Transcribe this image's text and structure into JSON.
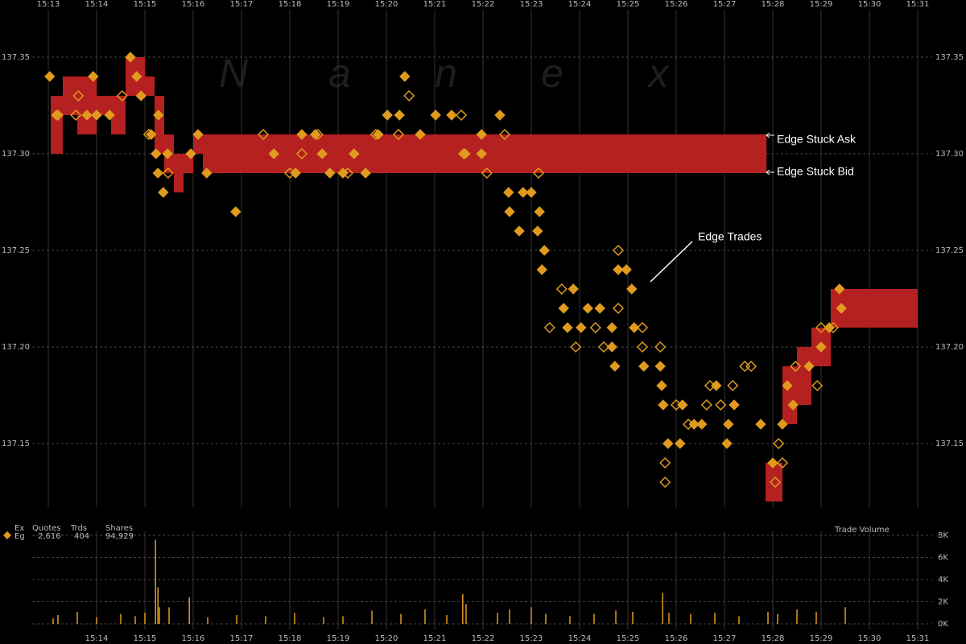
{
  "chart_data": [
    {
      "type": "quote-trade",
      "watermark": [
        "N",
        "a",
        "n",
        "e",
        "x"
      ],
      "xlim": [
        13,
        31
      ],
      "xticks": [
        {
          "value": 13,
          "label": "15:13"
        },
        {
          "value": 14,
          "label": "15:14"
        },
        {
          "value": 15,
          "label": "15:15"
        },
        {
          "value": 16,
          "label": "15:16"
        },
        {
          "value": 17,
          "label": "15:17"
        },
        {
          "value": 18,
          "label": "15:18"
        },
        {
          "value": 19,
          "label": "15:19"
        },
        {
          "value": 20,
          "label": "15:20"
        },
        {
          "value": 21,
          "label": "15:21"
        },
        {
          "value": 22,
          "label": "15:22"
        },
        {
          "value": 23,
          "label": "15:23"
        },
        {
          "value": 24,
          "label": "15:24"
        },
        {
          "value": 25,
          "label": "15:25"
        },
        {
          "value": 26,
          "label": "15:26"
        },
        {
          "value": 27,
          "label": "15:27"
        },
        {
          "value": 28,
          "label": "15:28"
        },
        {
          "value": 29,
          "label": "15:29"
        },
        {
          "value": 30,
          "label": "15:30"
        },
        {
          "value": 31,
          "label": "15:31"
        }
      ],
      "ylim": [
        137.115,
        137.38
      ],
      "yticks": [
        137.15,
        {
          "value": 137.2,
          "label": "137.20"
        },
        137.25,
        {
          "value": 137.3,
          "label": "137.30"
        },
        137.35
      ],
      "grid": true,
      "quotes": {
        "color": "#b52020",
        "start": [
          13.05,
          13.3,
          13.6,
          14.0,
          14.3,
          14.6,
          15.0,
          15.2,
          15.4,
          15.6,
          15.8,
          16.0,
          16.2,
          27.85,
          28.2,
          28.5,
          28.8,
          29.2
        ],
        "end": [
          13.3,
          13.6,
          14.0,
          14.3,
          14.6,
          15.0,
          15.2,
          15.4,
          15.6,
          15.8,
          16.0,
          16.2,
          27.87,
          28.2,
          28.5,
          28.8,
          29.2,
          31.0
        ],
        "bid": [
          137.3,
          137.32,
          137.31,
          137.32,
          137.31,
          137.33,
          137.33,
          137.3,
          137.29,
          137.28,
          137.29,
          137.3,
          137.29,
          137.12,
          137.16,
          137.17,
          137.19,
          137.21
        ],
        "ask": [
          137.33,
          137.34,
          137.34,
          137.33,
          137.33,
          137.35,
          137.34,
          137.33,
          137.31,
          137.3,
          137.3,
          137.31,
          137.31,
          137.14,
          137.19,
          137.2,
          137.21,
          137.23
        ]
      },
      "series": [
        {
          "marker": "filled",
          "color": "#e09a1e",
          "x": [
            13.03,
            13.17,
            13.8,
            13.93,
            14.0,
            14.27,
            14.7,
            14.83,
            14.92,
            15.28,
            15.13,
            15.23,
            15.27,
            15.38,
            15.47,
            15.95,
            16.1,
            16.28,
            16.88,
            17.67,
            18.12,
            18.25,
            18.53,
            18.67,
            18.83,
            19.1,
            19.33,
            19.57,
            19.83,
            20.02,
            20.27,
            20.38,
            20.7,
            21.02,
            21.35,
            21.63,
            21.97,
            21.97,
            22.35,
            22.53,
            22.55,
            22.75,
            22.83,
            23.0,
            23.17,
            23.13,
            23.27,
            23.22,
            23.67,
            23.87,
            23.75,
            24.03,
            24.17,
            24.42,
            24.67,
            24.67,
            24.73,
            24.8,
            24.97,
            25.08,
            25.13,
            25.33,
            25.67,
            25.7,
            25.73,
            25.83,
            26.08,
            26.13,
            26.37,
            26.53,
            26.83,
            27.05,
            27.08,
            27.2,
            27.75,
            28.0,
            28.2,
            28.3,
            28.42,
            28.75,
            29.0,
            29.17,
            29.42,
            29.38
          ],
          "values": [
            137.34,
            137.32,
            137.32,
            137.34,
            137.32,
            137.32,
            137.35,
            137.34,
            137.33,
            137.32,
            137.31,
            137.3,
            137.29,
            137.28,
            137.3,
            137.3,
            137.31,
            137.29,
            137.27,
            137.3,
            137.29,
            137.31,
            137.31,
            137.3,
            137.29,
            137.29,
            137.3,
            137.29,
            137.31,
            137.32,
            137.32,
            137.34,
            137.31,
            137.32,
            137.32,
            137.3,
            137.31,
            137.3,
            137.32,
            137.28,
            137.27,
            137.26,
            137.28,
            137.28,
            137.27,
            137.26,
            137.25,
            137.24,
            137.22,
            137.23,
            137.21,
            137.21,
            137.22,
            137.22,
            137.21,
            137.2,
            137.19,
            137.24,
            137.24,
            137.23,
            137.21,
            137.19,
            137.19,
            137.18,
            137.17,
            137.15,
            137.15,
            137.17,
            137.16,
            137.16,
            137.18,
            137.15,
            137.16,
            137.17,
            137.16,
            137.14,
            137.16,
            137.18,
            137.17,
            137.19,
            137.2,
            137.21,
            137.22,
            137.23
          ]
        },
        {
          "marker": "hollow",
          "color": "#e09a1e",
          "x": [
            13.2,
            13.57,
            13.62,
            14.53,
            15.08,
            15.48,
            17.45,
            18.0,
            18.25,
            18.58,
            19.2,
            19.78,
            20.25,
            20.47,
            21.55,
            21.6,
            22.08,
            22.45,
            23.15,
            23.63,
            23.38,
            23.92,
            24.33,
            24.5,
            24.8,
            24.8,
            25.3,
            25.3,
            25.67,
            25.77,
            25.77,
            26.0,
            26.25,
            26.63,
            26.7,
            26.92,
            27.17,
            27.42,
            27.55,
            28.05,
            28.12,
            28.2,
            28.47,
            28.92,
            29.0,
            29.25
          ],
          "values": [
            137.32,
            137.32,
            137.33,
            137.33,
            137.31,
            137.29,
            137.31,
            137.29,
            137.3,
            137.31,
            137.29,
            137.31,
            137.31,
            137.33,
            137.32,
            137.3,
            137.29,
            137.31,
            137.29,
            137.23,
            137.21,
            137.2,
            137.21,
            137.2,
            137.25,
            137.22,
            137.21,
            137.2,
            137.2,
            137.14,
            137.13,
            137.17,
            137.16,
            137.17,
            137.18,
            137.17,
            137.18,
            137.19,
            137.19,
            137.13,
            137.15,
            137.14,
            137.19,
            137.18,
            137.21,
            137.21
          ]
        }
      ],
      "annotations": [
        "Edge Stuck Ask",
        "Edge Stuck Bid",
        "Edge Trades"
      ]
    },
    {
      "type": "bar",
      "title": "Trade Volume",
      "xlim": [
        13,
        31
      ],
      "xticks": [
        {
          "value": 14,
          "label": "15:14"
        },
        {
          "value": 15,
          "label": "15:15"
        },
        {
          "value": 16,
          "label": "15:16"
        },
        {
          "value": 17,
          "label": "15:17"
        },
        {
          "value": 18,
          "label": "15:18"
        },
        {
          "value": 19,
          "label": "15:19"
        },
        {
          "value": 20,
          "label": "15:20"
        },
        {
          "value": 21,
          "label": "15:21"
        },
        {
          "value": 22,
          "label": "15:22"
        },
        {
          "value": 23,
          "label": "15:23"
        },
        {
          "value": 24,
          "label": "15:24"
        },
        {
          "value": 25,
          "label": "15:25"
        },
        {
          "value": 26,
          "label": "15:26"
        },
        {
          "value": 27,
          "label": "15:27"
        },
        {
          "value": 28,
          "label": "15:28"
        },
        {
          "value": 29,
          "label": "15:29"
        },
        {
          "value": 30,
          "label": "15:30"
        },
        {
          "value": 31,
          "label": "15:31"
        }
      ],
      "ylim": [
        0,
        8000
      ],
      "yticks": [
        {
          "value": 0,
          "label": "0K"
        },
        {
          "value": 2000,
          "label": "2K"
        },
        {
          "value": 4000,
          "label": "4K"
        },
        {
          "value": 6000,
          "label": "6K"
        },
        {
          "value": 8000,
          "label": "8K"
        }
      ],
      "color": "#e09a1e",
      "x": [
        13.1,
        13.2,
        13.6,
        14.0,
        14.5,
        14.8,
        15.0,
        15.22,
        15.27,
        15.3,
        15.5,
        15.92,
        16.3,
        16.9,
        17.5,
        18.1,
        18.7,
        19.1,
        19.7,
        20.3,
        20.8,
        21.25,
        21.58,
        21.65,
        22.3,
        22.55,
        23.0,
        23.3,
        23.8,
        24.3,
        24.75,
        25.1,
        25.72,
        25.85,
        26.3,
        26.8,
        27.3,
        27.9,
        28.1,
        28.5,
        28.9,
        29.5
      ],
      "values": [
        500,
        800,
        1100,
        600,
        900,
        700,
        1000,
        7600,
        3300,
        1500,
        1500,
        2400,
        600,
        800,
        700,
        1000,
        600,
        700,
        1200,
        900,
        1300,
        800,
        2700,
        1800,
        1000,
        1300,
        1500,
        900,
        700,
        900,
        1200,
        1100,
        2800,
        1000,
        900,
        1000,
        700,
        1100,
        900,
        1300,
        1100,
        1500
      ]
    }
  ],
  "stats": {
    "columns": [
      "Ex",
      "Quotes",
      "Trds",
      "Shares"
    ],
    "rows": [
      [
        "Eg",
        "2,616",
        "404",
        "94,929"
      ]
    ]
  }
}
